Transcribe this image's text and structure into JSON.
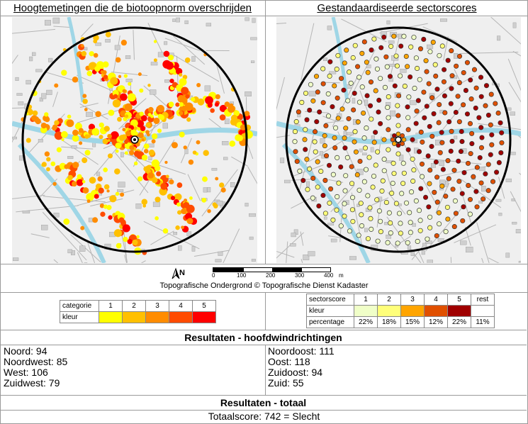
{
  "left_title": "Hoogtemetingen die de biotoopnorm overschrijden",
  "right_title": "Gestandaardiseerde sectorscores",
  "north_label": "N",
  "scale": {
    "ticks": [
      "0",
      "100",
      "200",
      "300",
      "400"
    ],
    "unit": "m"
  },
  "credit": "Topografische Ondergrond © Topografische Dienst Kadaster",
  "legend_left": {
    "row1_label": "categorie",
    "row2_label": "kleur",
    "categories": [
      "1",
      "2",
      "3",
      "4",
      "5"
    ],
    "colors": [
      "#ffff00",
      "#ffc000",
      "#ff8c00",
      "#ff4b00",
      "#ff0000"
    ]
  },
  "legend_right": {
    "row1_label": "sectorscore",
    "row2_label": "kleur",
    "row3_label": "percentage",
    "scores": [
      "1",
      "2",
      "3",
      "4",
      "5",
      "rest"
    ],
    "colors": [
      "#f0ffc8",
      "#ffff7a",
      "#ffa500",
      "#e05000",
      "#a00000",
      "#ffffff"
    ],
    "percentages": [
      "22%",
      "18%",
      "15%",
      "12%",
      "22%",
      "11%"
    ]
  },
  "results_header": "Resultaten - hoofdwindrichtingen",
  "results_left": [
    "Noord: 94",
    "Noordwest: 85",
    "West: 106",
    "Zuidwest: 79"
  ],
  "results_right": [
    "Noordoost: 111",
    "Oost: 118",
    "Zuidoost: 94",
    "Zuid: 55"
  ],
  "total_header": "Resultaten - totaal",
  "total_text": "Totaalscore: 742 = Slecht"
}
